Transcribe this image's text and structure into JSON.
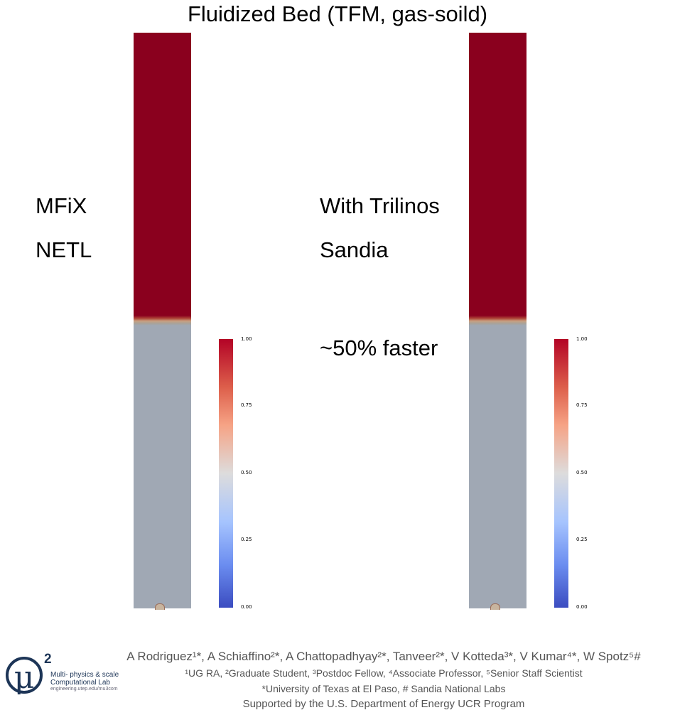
{
  "title": "Fluidized Bed (TFM, gas-soild)",
  "left_panel": {
    "code": "MFiX",
    "lab": "NETL"
  },
  "right_panel": {
    "code": "With Trilinos",
    "lab": "Sandia",
    "speedup": "~50%  faster"
  },
  "colorbar": {
    "ticks": [
      "1.00",
      "0.75",
      "0.50",
      "0.25",
      "0.00"
    ]
  },
  "credits": {
    "authors": "A Rodriguez¹*, A Schiaffino²*, A Chattopadhyay²*, Tanveer²*, V Kotteda³*, V Kumar⁴*, W Spotz⁵#",
    "roles": "¹UG RA, ²Graduate Student, ³Postdoc Fellow, ⁴Associate Professor, ⁵Senior Staff Scientist",
    "affiliations": "*University of Texas at El Paso, # Sandia National Labs",
    "support": "Supported by the U.S. Department of Energy UCR Program"
  },
  "logo": {
    "symbol": "μ",
    "superscript": "2",
    "line1": "Multi- physics & scale",
    "line2": "Computational Lab",
    "url": "engineering.utep.edu/mu3com"
  },
  "colors": {
    "solid_phase": "#8a001e",
    "gas_phase": "#a0a8b4",
    "logo": "#1d3557"
  }
}
